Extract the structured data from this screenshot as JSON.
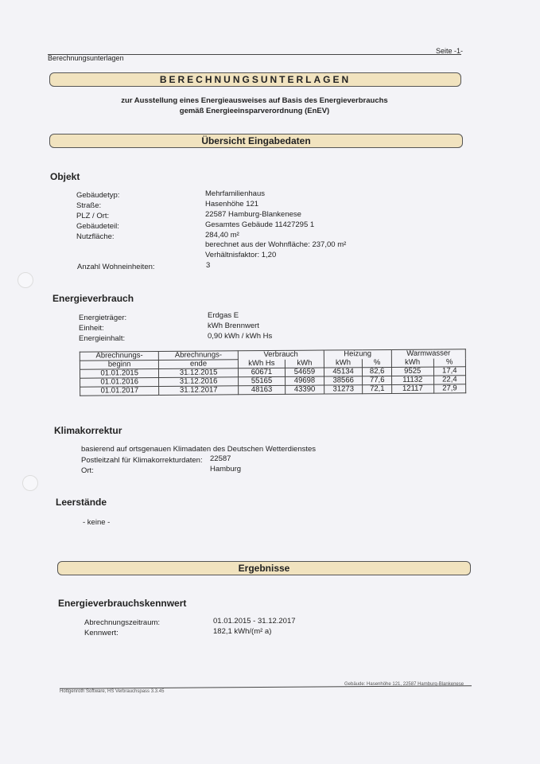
{
  "header": {
    "left": "Berechnungsunterlagen",
    "right": "Seite -1-"
  },
  "title": "BERECHNUNGSUNTERLAGEN",
  "subtitle1": "zur Ausstellung eines Energieausweises auf Basis des Energieverbrauchs",
  "subtitle2": "gemäß Energieeinsparverordnung (EnEV)",
  "section_overview": "Übersicht Eingabedaten",
  "objekt": {
    "heading": "Objekt",
    "rows": [
      {
        "label": "Gebäudetyp:",
        "value": "Mehrfamilienhaus"
      },
      {
        "label": "Straße:",
        "value": "Hasenhöhe 121"
      },
      {
        "label": "PLZ / Ort:",
        "value": "22587 Hamburg-Blankenese"
      },
      {
        "label": "Gebäudeteil:",
        "value": "Gesamtes Gebäude 11427295 1"
      },
      {
        "label": "Nutzfläche:",
        "value": "284,40 m²"
      }
    ],
    "extra1": "berechnet aus der Wohnfläche: 237,00 m²",
    "extra2": "Verhältnisfaktor: 1,20",
    "units_label": "Anzahl Wohneinheiten:",
    "units_value": "3"
  },
  "energie": {
    "heading": "Energieverbrauch",
    "rows": [
      {
        "label": "Energieträger:",
        "value": "Erdgas E"
      },
      {
        "label": "Einheit:",
        "value": "kWh Brennwert"
      },
      {
        "label": "Energieinhalt:",
        "value": "0,90 kWh / kWh Hs"
      }
    ],
    "table": {
      "h_begin1": "Abrechnungs-",
      "h_begin2": "beginn",
      "h_end1": "Abrechnungs-",
      "h_end2": "ende",
      "h_verbrauch": "Verbrauch",
      "h_heizung": "Heizung",
      "h_ww": "Warmwasser",
      "h_kwhhs": "kWh Hs",
      "h_kwh": "kWh",
      "h_pct": "%",
      "rows": [
        [
          "01.01.2015",
          "31.12.2015",
          "60671",
          "54659",
          "45134",
          "82,6",
          "9525",
          "17,4"
        ],
        [
          "01.01.2016",
          "31.12.2016",
          "55165",
          "49698",
          "38566",
          "77,6",
          "11132",
          "22,4"
        ],
        [
          "01.01.2017",
          "31.12.2017",
          "48163",
          "43390",
          "31273",
          "72,1",
          "12117",
          "27,9"
        ]
      ]
    }
  },
  "klima": {
    "heading": "Klimakorrektur",
    "line": "basierend auf ortsgenauen Klimadaten des Deutschen Wetterdienstes",
    "plz_label": "Postleitzahl für Klimakorrekturdaten:",
    "plz": "22587",
    "ort_label": "Ort:",
    "ort": "Hamburg"
  },
  "leer": {
    "heading": "Leerstände",
    "value": "- keine -"
  },
  "section_results": "Ergebnisse",
  "kennwert": {
    "heading": "Energieverbrauchskennwert",
    "zeitraum_label": "Abrechnungszeitraum:",
    "zeitraum": "01.01.2015 - 31.12.2017",
    "kw_label": "Kennwert:",
    "kw": "182,1 kWh/(m² a)"
  },
  "footer": {
    "left": "Hottgenroth Software, HS Verbrauchspass 3.3.45",
    "right": "Gebäude: Hasenhöhe 121, 22587 Hamburg-Blankenese"
  }
}
